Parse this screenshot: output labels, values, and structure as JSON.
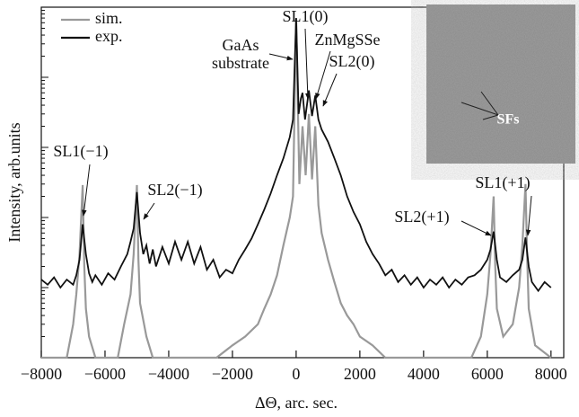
{
  "chart_data": {
    "type": "line",
    "xlabel": "ΔΘ, arc. sec.",
    "ylabel": "Intensity, arb.units",
    "log_y": true,
    "legend": "upper left",
    "xlim": [
      -8000,
      8400
    ],
    "ylim": [
      1,
      100000
    ],
    "xticks": [
      {
        "value": -8000,
        "label": "−8000"
      },
      {
        "value": -6000,
        "label": "−6000"
      },
      {
        "value": -4000,
        "label": "−4000"
      },
      {
        "value": -2000,
        "label": "−2000"
      },
      0,
      2000,
      4000,
      6000,
      8000
    ],
    "series": [
      {
        "name": "sim.",
        "color": "#999999",
        "x": [
          -8000,
          -7200,
          -7000,
          -6900,
          -6800,
          -6700,
          -6650,
          -6600,
          -6500,
          -6300,
          -5600,
          -5400,
          -5200,
          -5100,
          -5000,
          -4950,
          -4900,
          -4700,
          -4500,
          -2500,
          -2000,
          -1600,
          -1200,
          -1000,
          -800,
          -600,
          -400,
          -200,
          -100,
          0,
          100,
          200,
          300,
          400,
          500,
          600,
          700,
          800,
          1000,
          1200,
          1400,
          1600,
          1800,
          2000,
          2400,
          2800,
          5500,
          5800,
          6000,
          6100,
          6200,
          6250,
          6300,
          6500,
          6800,
          7000,
          7100,
          7200,
          7250,
          7300,
          7500,
          8000
        ],
        "values": [
          1,
          1,
          3,
          8,
          30,
          290,
          20,
          5,
          2,
          1,
          1,
          3,
          8,
          30,
          290,
          25,
          6,
          2,
          1,
          1,
          1.5,
          2,
          3,
          5,
          8,
          15,
          40,
          100,
          200,
          70000,
          300,
          2000,
          400,
          3000,
          350,
          2000,
          150,
          60,
          25,
          12,
          6,
          4,
          3,
          2,
          1.5,
          1,
          1,
          2,
          8,
          30,
          200,
          20,
          5,
          2,
          3,
          10,
          40,
          300,
          30,
          5,
          1.5,
          1
        ]
      },
      {
        "name": "exp.",
        "color": "#111111",
        "x": [
          -8000,
          -7800,
          -7600,
          -7400,
          -7200,
          -7000,
          -6900,
          -6800,
          -6700,
          -6600,
          -6500,
          -6400,
          -6300,
          -6100,
          -5900,
          -5700,
          -5500,
          -5300,
          -5200,
          -5100,
          -5000,
          -4900,
          -4800,
          -4700,
          -4600,
          -4500,
          -4400,
          -4200,
          -4000,
          -3800,
          -3600,
          -3400,
          -3200,
          -3000,
          -2800,
          -2600,
          -2400,
          -2200,
          -2000,
          -1800,
          -1600,
          -1400,
          -1200,
          -1000,
          -800,
          -600,
          -400,
          -200,
          -100,
          0,
          80,
          150,
          200,
          280,
          400,
          500,
          600,
          700,
          800,
          1000,
          1200,
          1400,
          1600,
          1800,
          2000,
          2200,
          2400,
          2600,
          2800,
          3000,
          3200,
          3400,
          3600,
          3800,
          4000,
          4200,
          4400,
          4600,
          4800,
          5000,
          5200,
          5400,
          5600,
          5800,
          6000,
          6100,
          6200,
          6300,
          6400,
          6600,
          6800,
          7000,
          7100,
          7200,
          7300,
          7400,
          7600,
          7800,
          8000
        ],
        "values": [
          13,
          11,
          14,
          10,
          13,
          11,
          15,
          25,
          80,
          30,
          16,
          12,
          15,
          11,
          16,
          13,
          20,
          30,
          45,
          70,
          230,
          60,
          30,
          40,
          22,
          35,
          20,
          38,
          22,
          45,
          25,
          45,
          22,
          38,
          18,
          25,
          14,
          18,
          16,
          25,
          35,
          50,
          80,
          130,
          220,
          400,
          700,
          1400,
          2500,
          70000,
          3000,
          5000,
          6000,
          2500,
          6500,
          2800,
          5500,
          2500,
          1800,
          1200,
          700,
          400,
          200,
          120,
          80,
          45,
          30,
          22,
          15,
          18,
          12,
          15,
          11,
          14,
          10,
          13,
          11,
          14,
          10,
          13,
          11,
          14,
          15,
          18,
          25,
          35,
          63,
          25,
          14,
          12,
          15,
          18,
          25,
          52,
          20,
          12,
          9,
          12,
          10
        ]
      }
    ],
    "annotations": [
      "GaAs",
      "substrate",
      "SL1(0)",
      "ZnMgSSe",
      "SL2(0)",
      "SL1(−1)",
      "SL2(−1)",
      "SL2(+1)",
      "SL1(+1)",
      "SFs"
    ]
  }
}
